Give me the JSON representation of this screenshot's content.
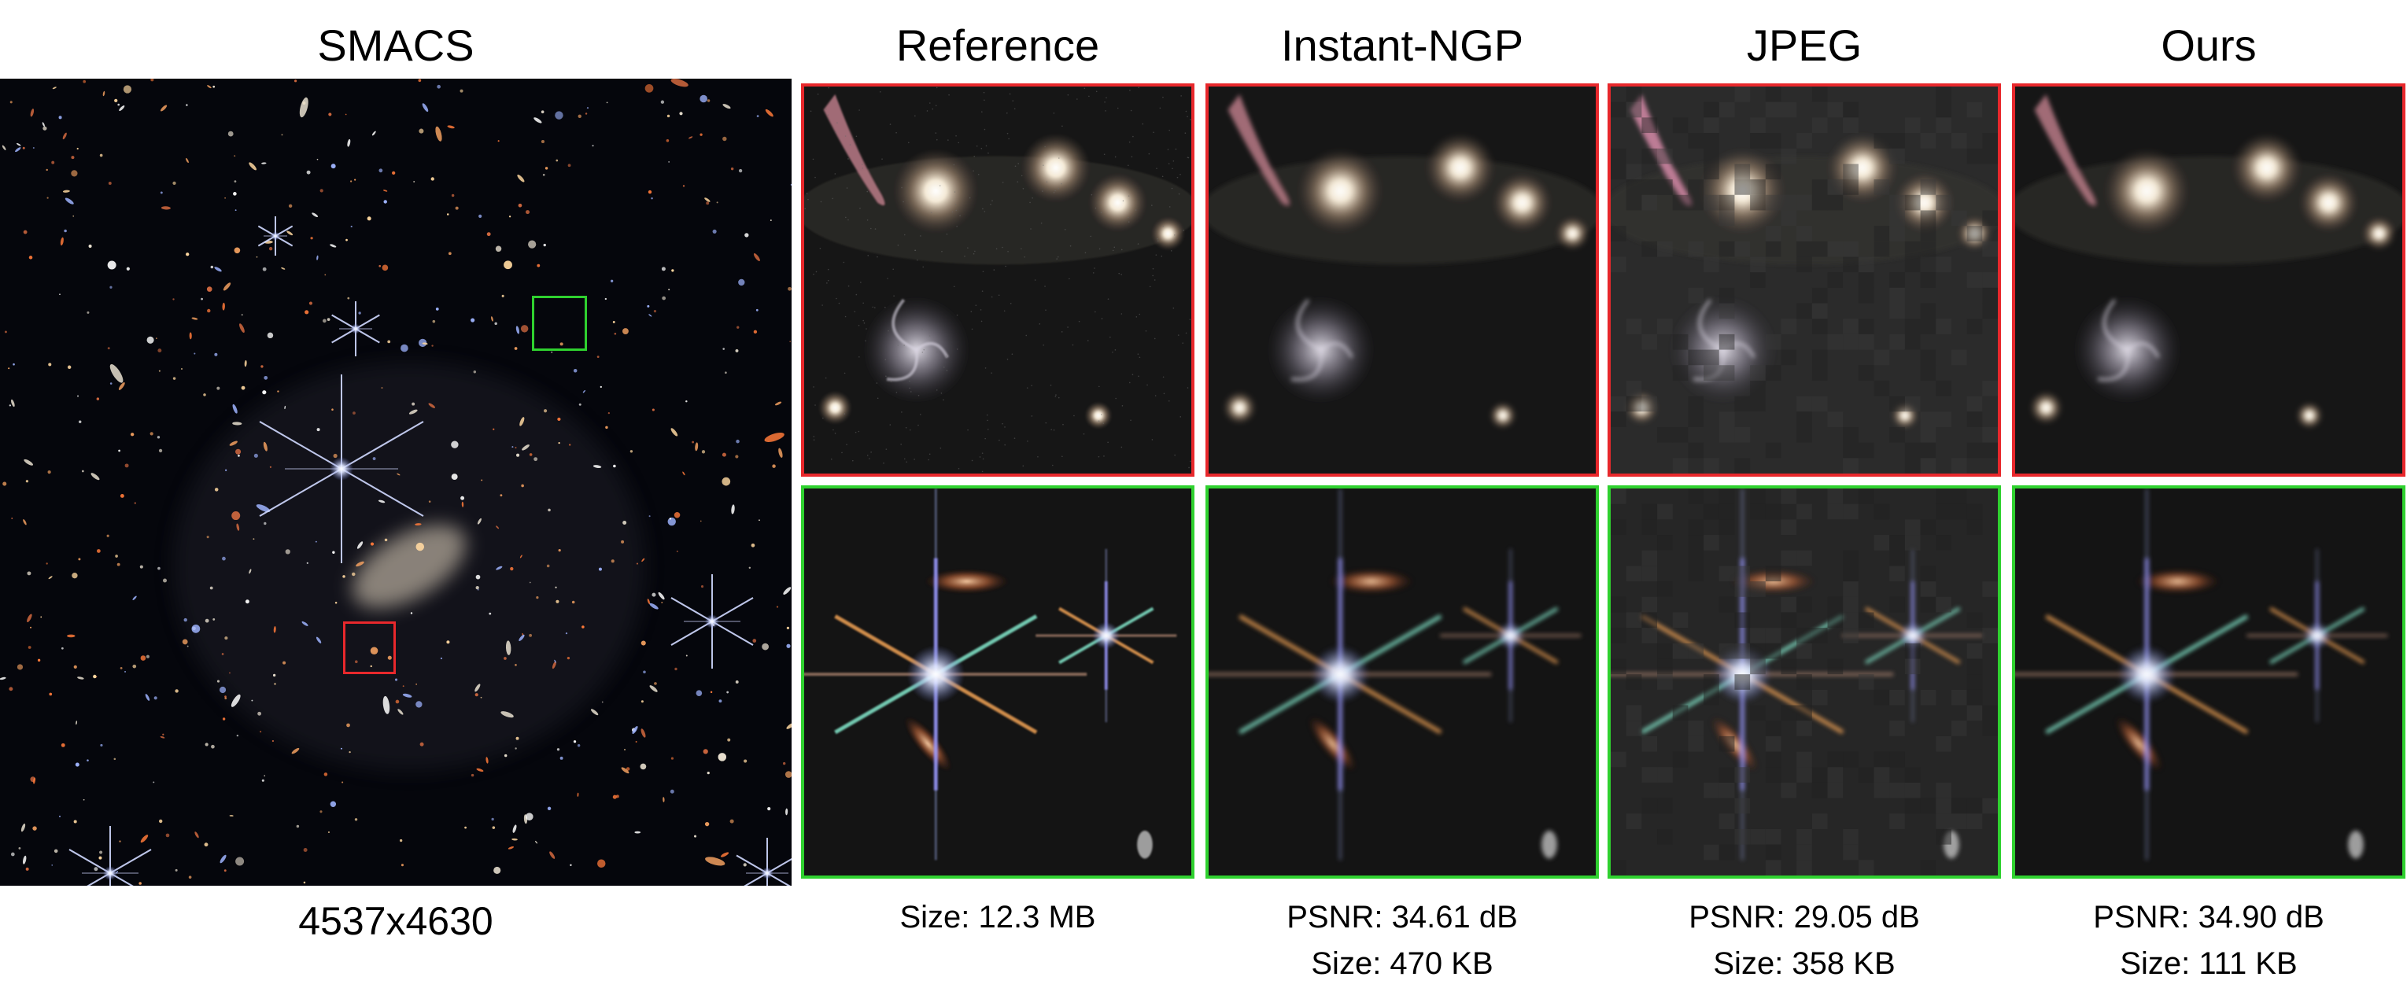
{
  "overview": {
    "title": "SMACS",
    "dimensions": "4537x4630"
  },
  "columns": [
    {
      "title": "Reference",
      "psnr": "",
      "size": "Size: 12.3 MB"
    },
    {
      "title": "Instant-NGP",
      "psnr": "PSNR: 34.61 dB",
      "size": "Size: 470 KB"
    },
    {
      "title": "JPEG",
      "psnr": "PSNR: 29.05 dB",
      "size": "Size: 358 KB"
    },
    {
      "title": "Ours",
      "psnr": "PSNR: 34.90 dB",
      "size": "Size: 111 KB"
    }
  ],
  "colors": {
    "red_box": "#e8282c",
    "green_box": "#2fd12f"
  }
}
